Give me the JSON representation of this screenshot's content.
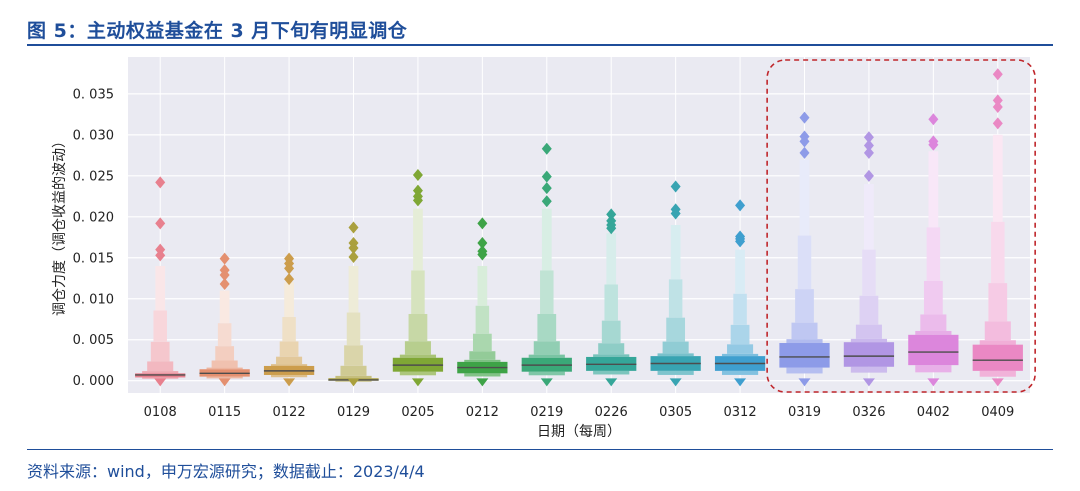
{
  "figure": {
    "title": "图 5：主动权益基金在 3 月下旬有明显调仓",
    "source": "资料来源：wind，申万宏源研究；数据截止：2023/4/4"
  },
  "chart_data": {
    "type": "boxen",
    "title": "",
    "xlabel": "日期（每周）",
    "ylabel": "调仓力度（调仓收益的波动）",
    "ylim": [
      -0.0015,
      0.0395
    ],
    "yticks": [
      0.0,
      0.005,
      0.01,
      0.015,
      0.02,
      0.025,
      0.03,
      0.035
    ],
    "ytick_labels": [
      "0. 000",
      "0. 005",
      "0. 010",
      "0. 015",
      "0. 020",
      "0. 025",
      "0. 030",
      "0. 035"
    ],
    "grid": true,
    "highlight": {
      "categories": [
        "0319",
        "0326",
        "0402",
        "0409"
      ],
      "style": "dashed-rounded-box",
      "color": "#c0262b"
    },
    "categories": [
      "0108",
      "0115",
      "0122",
      "0129",
      "0205",
      "0212",
      "0219",
      "0226",
      "0305",
      "0312",
      "0319",
      "0326",
      "0402",
      "0409"
    ],
    "series": [
      {
        "category": "0108",
        "color": "#e8808e",
        "median": 0.0007,
        "q1": 0.0004,
        "q3": 0.0009,
        "whisker_max": 0.014,
        "outliers": [
          0.0242,
          0.0192,
          0.016,
          0.0153
        ]
      },
      {
        "category": "0115",
        "color": "#e49070",
        "median": 0.0009,
        "q1": 0.0005,
        "q3": 0.0014,
        "whisker_max": 0.011,
        "outliers": [
          0.0149,
          0.0135,
          0.0129,
          0.0118
        ]
      },
      {
        "category": "0122",
        "color": "#cc9d4c",
        "median": 0.0012,
        "q1": 0.0007,
        "q3": 0.0018,
        "whisker_max": 0.012,
        "outliers": [
          0.0149,
          0.0143,
          0.0137,
          0.0124
        ]
      },
      {
        "category": "0129",
        "color": "#aaa03e",
        "median": 0.0001,
        "q1": 0.0,
        "q3": 0.0003,
        "whisker_max": 0.014,
        "outliers": [
          0.0187,
          0.0168,
          0.0162,
          0.0151
        ]
      },
      {
        "category": "0205",
        "color": "#7fa735",
        "median": 0.0019,
        "q1": 0.0011,
        "q3": 0.0028,
        "whisker_max": 0.021,
        "outliers": [
          0.0251,
          0.0232,
          0.0225,
          0.022
        ]
      },
      {
        "category": "0212",
        "color": "#3ea347",
        "median": 0.0016,
        "q1": 0.0009,
        "q3": 0.0023,
        "whisker_max": 0.014,
        "outliers": [
          0.0192,
          0.0168,
          0.0158,
          0.0154
        ]
      },
      {
        "category": "0219",
        "color": "#3aa878",
        "median": 0.0019,
        "q1": 0.0011,
        "q3": 0.0028,
        "whisker_max": 0.021,
        "outliers": [
          0.0283,
          0.0249,
          0.0235,
          0.0219
        ]
      },
      {
        "category": "0226",
        "color": "#35a699",
        "median": 0.002,
        "q1": 0.0012,
        "q3": 0.0029,
        "whisker_max": 0.018,
        "outliers": [
          0.0203,
          0.0195,
          0.019,
          0.0186
        ]
      },
      {
        "category": "0305",
        "color": "#38a4b2",
        "median": 0.0021,
        "q1": 0.0012,
        "q3": 0.003,
        "whisker_max": 0.019,
        "outliers": [
          0.0237,
          0.0209,
          0.0204
        ]
      },
      {
        "category": "0312",
        "color": "#3f9fcf",
        "median": 0.0021,
        "q1": 0.0012,
        "q3": 0.003,
        "whisker_max": 0.016,
        "outliers": [
          0.0214,
          0.0176,
          0.0173,
          0.017
        ]
      },
      {
        "category": "0319",
        "color": "#8d9be8",
        "median": 0.0029,
        "q1": 0.0016,
        "q3": 0.0046,
        "whisker_max": 0.027,
        "outliers": [
          0.0321,
          0.0298,
          0.0292,
          0.0278
        ]
      },
      {
        "category": "0326",
        "color": "#b196e4",
        "median": 0.003,
        "q1": 0.0017,
        "q3": 0.0047,
        "whisker_max": 0.024,
        "outliers": [
          0.0297,
          0.0287,
          0.0278,
          0.025
        ]
      },
      {
        "category": "0402",
        "color": "#dc86dc",
        "median": 0.0035,
        "q1": 0.0019,
        "q3": 0.0056,
        "whisker_max": 0.028,
        "outliers": [
          0.0319,
          0.0292,
          0.0288
        ]
      },
      {
        "category": "0409",
        "color": "#ea88c4",
        "median": 0.0025,
        "q1": 0.0012,
        "q3": 0.0044,
        "whisker_max": 0.03,
        "outliers": [
          0.0374,
          0.0342,
          0.0334,
          0.0314
        ]
      }
    ]
  }
}
